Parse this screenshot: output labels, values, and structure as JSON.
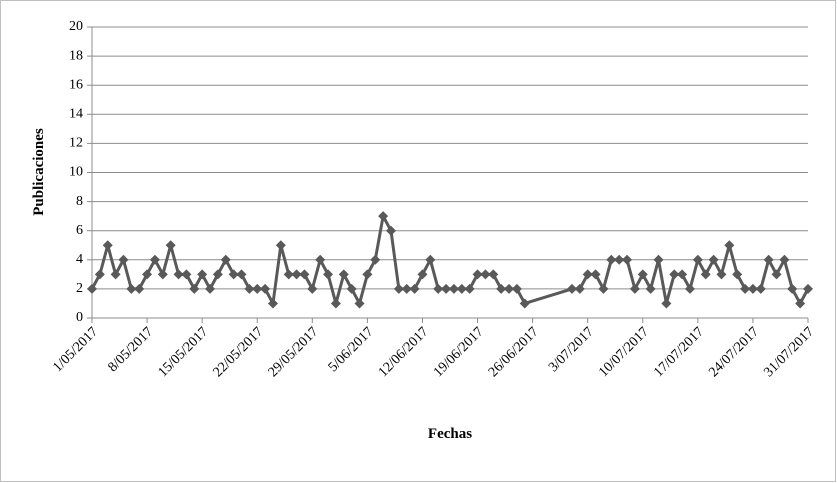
{
  "chart_data": {
    "type": "line",
    "x_label": "Fechas",
    "y_label": "Publicaciones",
    "x": [
      "1/05/2017",
      "2/05/2017",
      "3/05/2017",
      "4/05/2017",
      "5/05/2017",
      "6/05/2017",
      "7/05/2017",
      "8/05/2017",
      "9/05/2017",
      "10/05/2017",
      "11/05/2017",
      "12/05/2017",
      "13/05/2017",
      "14/05/2017",
      "15/05/2017",
      "16/05/2017",
      "17/05/2017",
      "18/05/2017",
      "19/05/2017",
      "20/05/2017",
      "21/05/2017",
      "22/05/2017",
      "23/05/2017",
      "24/05/2017",
      "25/05/2017",
      "26/05/2017",
      "27/05/2017",
      "28/05/2017",
      "29/05/2017",
      "30/05/2017",
      "31/05/2017",
      "1/06/2017",
      "2/06/2017",
      "3/06/2017",
      "4/06/2017",
      "5/06/2017",
      "6/06/2017",
      "7/06/2017",
      "8/06/2017",
      "9/06/2017",
      "10/06/2017",
      "11/06/2017",
      "12/06/2017",
      "13/06/2017",
      "14/06/2017",
      "15/06/2017",
      "16/06/2017",
      "17/06/2017",
      "18/06/2017",
      "19/06/2017",
      "20/06/2017",
      "21/06/2017",
      "22/06/2017",
      "23/06/2017",
      "24/06/2017",
      "25/06/2017",
      "1/07/2017",
      "2/07/2017",
      "3/07/2017",
      "4/07/2017",
      "5/07/2017",
      "6/07/2017",
      "7/07/2017",
      "8/07/2017",
      "9/07/2017",
      "10/07/2017",
      "11/07/2017",
      "12/07/2017",
      "13/07/2017",
      "14/07/2017",
      "15/07/2017",
      "16/07/2017",
      "17/07/2017",
      "18/07/2017",
      "19/07/2017",
      "20/07/2017",
      "21/07/2017",
      "22/07/2017",
      "23/07/2017",
      "24/07/2017",
      "25/07/2017",
      "26/07/2017",
      "27/07/2017",
      "28/07/2017",
      "29/07/2017",
      "30/07/2017",
      "31/07/2017"
    ],
    "series": [
      {
        "name": "Publicaciones",
        "color": "#595959",
        "values": [
          2,
          3,
          5,
          3,
          4,
          2,
          2,
          3,
          4,
          3,
          5,
          3,
          3,
          2,
          3,
          2,
          3,
          4,
          3,
          3,
          2,
          2,
          2,
          1,
          5,
          3,
          3,
          3,
          2,
          4,
          3,
          1,
          3,
          2,
          1,
          3,
          4,
          7,
          6,
          2,
          2,
          2,
          3,
          4,
          2,
          2,
          2,
          2,
          2,
          3,
          3,
          3,
          2,
          2,
          2,
          1,
          2,
          2,
          3,
          3,
          2,
          4,
          4,
          4,
          2,
          3,
          2,
          4,
          1,
          3,
          3,
          2,
          4,
          3,
          4,
          3,
          5,
          3,
          2,
          2,
          2,
          4,
          3,
          4,
          2,
          1,
          2
        ]
      }
    ],
    "xlim": [
      "1/05/2017",
      "31/07/2017"
    ],
    "xticks": [
      "1/05/2017",
      "8/05/2017",
      "15/05/2017",
      "22/05/2017",
      "29/05/2017",
      "5/06/2017",
      "12/06/2017",
      "19/06/2017",
      "26/06/2017",
      "3/07/2017",
      "10/07/2017",
      "17/07/2017",
      "24/07/2017",
      "31/07/2017"
    ],
    "ylim": [
      0,
      20
    ],
    "yticks": [
      0,
      2,
      4,
      6,
      8,
      10,
      12,
      14,
      16,
      18,
      20
    ],
    "grid": true
  }
}
